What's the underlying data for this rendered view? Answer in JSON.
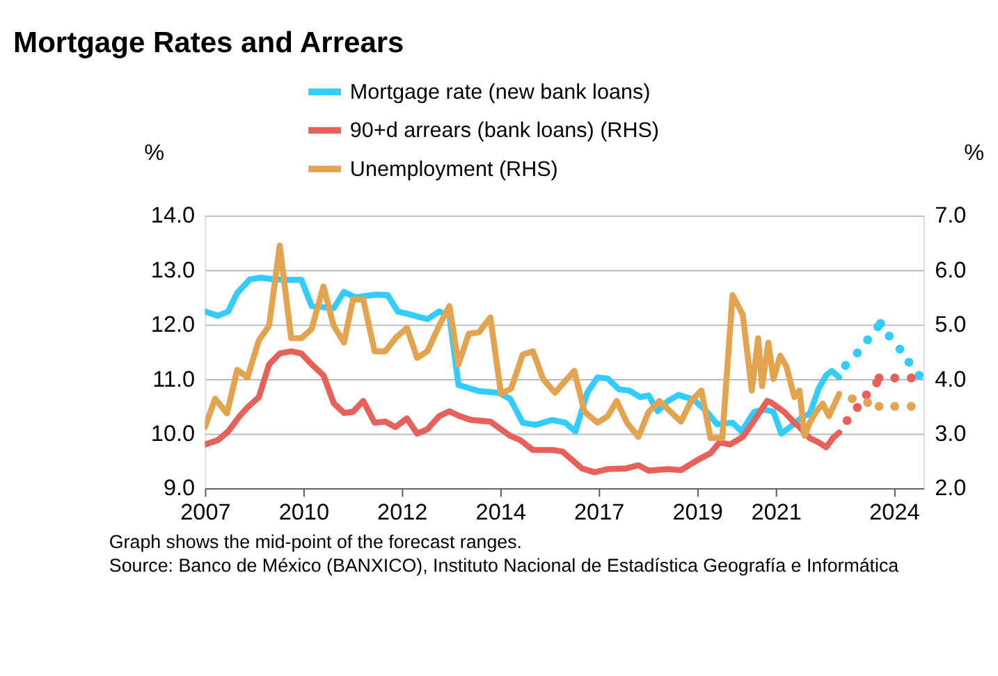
{
  "chart_data": {
    "type": "line",
    "title": "Mortgage Rates and Arrears",
    "ylabel": "%",
    "y2label": "%",
    "xlim": [
      2007,
      2025.25
    ],
    "xticks": [
      {
        "value": 2007,
        "label": "2007"
      },
      {
        "value": 2009.5,
        "label": "2010"
      },
      {
        "value": 2012,
        "label": "2012"
      },
      {
        "value": 2014.5,
        "label": "2014"
      },
      {
        "value": 2017,
        "label": "2017"
      },
      {
        "value": 2019.5,
        "label": "2019"
      },
      {
        "value": 2021.5,
        "label": "2021"
      },
      {
        "value": 2024.5,
        "label": "2024"
      }
    ],
    "ylim": [
      9,
      14
    ],
    "yticks": [
      {
        "value": 9,
        "label": "9.0"
      },
      {
        "value": 10,
        "label": "10.0"
      },
      {
        "value": 11,
        "label": "11.0"
      },
      {
        "value": 12,
        "label": "12.0"
      },
      {
        "value": 13,
        "label": "13.0"
      },
      {
        "value": 14,
        "label": "14.0"
      }
    ],
    "y2lim": [
      2,
      7
    ],
    "y2ticks": [
      {
        "value": 2,
        "label": "2.0"
      },
      {
        "value": 3,
        "label": "3.0"
      },
      {
        "value": 4,
        "label": "4.0"
      },
      {
        "value": 5,
        "label": "5.0"
      },
      {
        "value": 6,
        "label": "6.0"
      },
      {
        "value": 7,
        "label": "7.0"
      }
    ],
    "grid": "y",
    "legend": "top",
    "line_style": "solid",
    "series": [
      {
        "name": "Mortgage rate (new bank loans)",
        "color": "#33ccff",
        "type": "line",
        "axis": "y",
        "x": [
          2007.0,
          2007.33,
          2007.59,
          2007.82,
          2008.14,
          2008.41,
          2008.73,
          2009.12,
          2009.45,
          2009.71,
          2010.27,
          2010.53,
          2010.82,
          2011.35,
          2011.64,
          2011.9,
          2012.13,
          2012.65,
          2012.95,
          2013.21,
          2013.44,
          2013.96,
          2014.45,
          2014.75,
          2015.07,
          2015.4,
          2015.82,
          2016.15,
          2016.41,
          2016.71,
          2016.97,
          2017.23,
          2017.52,
          2017.78,
          2018.05,
          2018.27,
          2018.5,
          2018.76,
          2019.03,
          2019.42,
          2019.75,
          2020.01,
          2020.4,
          2020.63,
          2020.95,
          2021.22,
          2021.44,
          2021.64,
          2021.93,
          2022.2,
          2022.36,
          2022.59,
          2022.78,
          2022.92,
          2023.11
        ],
        "values": [
          12.24,
          12.16,
          12.24,
          12.58,
          12.83,
          12.86,
          12.83,
          12.82,
          12.82,
          12.34,
          12.3,
          12.6,
          12.5,
          12.55,
          12.54,
          12.24,
          12.2,
          12.1,
          12.24,
          12.16,
          10.89,
          10.78,
          10.75,
          10.64,
          10.2,
          10.16,
          10.25,
          10.2,
          10.04,
          10.75,
          11.03,
          11.01,
          10.81,
          10.79,
          10.67,
          10.7,
          10.41,
          10.6,
          10.71,
          10.62,
          10.4,
          10.17,
          10.2,
          10.04,
          10.4,
          10.44,
          10.4,
          10.0,
          10.16,
          10.32,
          10.36,
          10.83,
          11.07,
          11.15,
          11.03
        ]
      },
      {
        "color": "#33ccff",
        "type": "scatter",
        "marker": "circle",
        "axis": "y",
        "x": [
          2023.27,
          2023.57,
          2023.83,
          2024.09,
          2024.16,
          2024.38,
          2024.65,
          2024.88,
          2025.14
        ],
        "values": [
          11.25,
          11.48,
          11.72,
          11.96,
          12.02,
          11.79,
          11.55,
          11.31,
          11.07
        ]
      },
      {
        "name": "90+d arrears (bank loans) (RHS)",
        "color": "#e8605a",
        "type": "line",
        "axis": "y2",
        "x": [
          2007.0,
          2007.33,
          2007.59,
          2007.88,
          2008.08,
          2008.37,
          2008.63,
          2008.9,
          2009.19,
          2009.45,
          2009.71,
          2010.01,
          2010.27,
          2010.53,
          2010.76,
          2011.02,
          2011.31,
          2011.58,
          2011.84,
          2012.13,
          2012.39,
          2012.65,
          2012.95,
          2013.21,
          2013.47,
          2013.76,
          2014.25,
          2014.75,
          2015.01,
          2015.33,
          2015.82,
          2016.08,
          2016.58,
          2016.9,
          2017.23,
          2017.69,
          2018.01,
          2018.27,
          2018.76,
          2019.09,
          2019.52,
          2019.84,
          2020.07,
          2020.33,
          2020.66,
          2020.95,
          2021.28,
          2021.38,
          2021.71,
          2021.97,
          2022.1,
          2022.36,
          2022.59,
          2022.78,
          2022.95,
          2023.11
        ],
        "values": [
          2.8,
          2.88,
          3.04,
          3.32,
          3.48,
          3.67,
          4.27,
          4.47,
          4.51,
          4.47,
          4.27,
          4.07,
          3.56,
          3.38,
          3.4,
          3.6,
          3.2,
          3.22,
          3.12,
          3.28,
          3.0,
          3.08,
          3.32,
          3.41,
          3.32,
          3.25,
          3.22,
          2.96,
          2.88,
          2.7,
          2.7,
          2.67,
          2.36,
          2.29,
          2.35,
          2.36,
          2.42,
          2.32,
          2.35,
          2.33,
          2.52,
          2.64,
          2.84,
          2.8,
          2.94,
          3.24,
          3.6,
          3.57,
          3.4,
          3.2,
          3.12,
          2.92,
          2.84,
          2.75,
          2.92,
          3.02
        ]
      },
      {
        "color": "#e8605a",
        "type": "scatter",
        "marker": "circle",
        "axis": "y2",
        "x": [
          2023.31,
          2023.57,
          2023.8,
          2024.06,
          2024.12,
          2024.52,
          2024.94
        ],
        "values": [
          3.24,
          3.48,
          3.71,
          3.93,
          4.02,
          4.02,
          4.02
        ]
      },
      {
        "name": "Unemployment (RHS)",
        "color": "#e4a44f",
        "type": "line",
        "axis": "y2",
        "x": [
          2007.0,
          2007.26,
          2007.56,
          2007.82,
          2008.08,
          2008.37,
          2008.63,
          2008.9,
          2009.19,
          2009.45,
          2009.71,
          2010.01,
          2010.27,
          2010.53,
          2010.76,
          2011.02,
          2011.31,
          2011.58,
          2011.84,
          2012.13,
          2012.39,
          2012.65,
          2012.95,
          2013.21,
          2013.44,
          2013.7,
          2013.96,
          2014.25,
          2014.52,
          2014.78,
          2015.07,
          2015.33,
          2015.59,
          2015.89,
          2016.38,
          2016.64,
          2016.97,
          2017.23,
          2017.46,
          2017.72,
          2018.01,
          2018.27,
          2018.54,
          2018.83,
          2019.09,
          2019.35,
          2019.61,
          2019.84,
          2020.14,
          2020.4,
          2020.66,
          2020.89,
          2021.05,
          2021.15,
          2021.31,
          2021.44,
          2021.61,
          2021.77,
          2021.97,
          2022.1,
          2022.23,
          2022.36,
          2022.52,
          2022.69,
          2022.85,
          2023.11
        ],
        "values": [
          3.12,
          3.64,
          3.37,
          4.17,
          4.03,
          4.71,
          4.98,
          6.45,
          4.75,
          4.75,
          4.92,
          5.7,
          4.98,
          4.67,
          5.46,
          5.46,
          4.51,
          4.51,
          4.75,
          4.94,
          4.39,
          4.51,
          4.98,
          5.34,
          4.27,
          4.83,
          4.86,
          5.13,
          3.73,
          3.83,
          4.45,
          4.51,
          4.0,
          3.75,
          4.15,
          3.4,
          3.2,
          3.32,
          3.6,
          3.2,
          2.94,
          3.4,
          3.6,
          3.4,
          3.22,
          3.6,
          3.79,
          2.92,
          2.92,
          5.54,
          5.18,
          3.79,
          4.75,
          3.87,
          4.67,
          4.0,
          4.43,
          4.23,
          3.67,
          3.79,
          2.96,
          3.2,
          3.4,
          3.55,
          3.32,
          3.73
        ]
      },
      {
        "color": "#e4a44f",
        "type": "scatter",
        "marker": "circle",
        "axis": "y2",
        "x": [
          2023.44,
          2023.83,
          2024.12,
          2024.52,
          2024.94
        ],
        "values": [
          3.64,
          3.57,
          3.5,
          3.5,
          3.5
        ]
      }
    ],
    "annotations": [
      "Graph shows the mid-point of the forecast ranges.",
      "Source: Banco de México (BANXICO), Instituto Nacional de Estadística Geografía e Informática"
    ]
  }
}
